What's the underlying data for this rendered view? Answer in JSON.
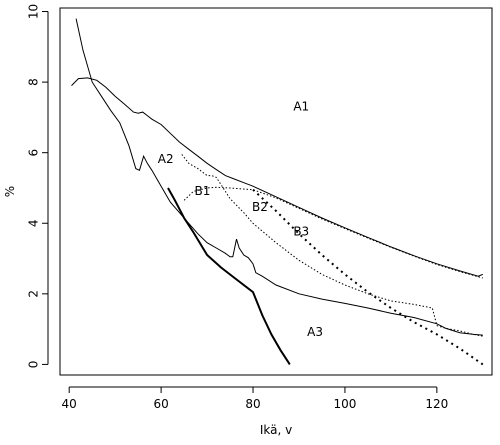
{
  "chart_data": {
    "type": "line",
    "title": "",
    "xlabel": "Ikä, v",
    "ylabel": "%",
    "xlim": [
      38,
      132
    ],
    "ylim": [
      -0.3,
      10.1
    ],
    "xticks": [
      40,
      60,
      80,
      100,
      120
    ],
    "yticks": [
      0,
      2,
      4,
      6,
      8,
      10
    ],
    "grid": false,
    "legend": "none",
    "series": [
      {
        "name": "A1",
        "style": "solid",
        "width": 1,
        "label_at": [
          90.5,
          7.3
        ],
        "points": [
          [
            40.5,
            7.9
          ],
          [
            42,
            8.1
          ],
          [
            44,
            8.12
          ],
          [
            46,
            8.05
          ],
          [
            48,
            7.85
          ],
          [
            50,
            7.6
          ],
          [
            52,
            7.38
          ],
          [
            54,
            7.15
          ],
          [
            55,
            7.12
          ],
          [
            56,
            7.15
          ],
          [
            57,
            7.05
          ],
          [
            58,
            6.95
          ],
          [
            60,
            6.8
          ],
          [
            62,
            6.55
          ],
          [
            64,
            6.3
          ],
          [
            66,
            6.1
          ],
          [
            68,
            5.9
          ],
          [
            70,
            5.7
          ],
          [
            72,
            5.52
          ],
          [
            74,
            5.35
          ],
          [
            76,
            5.25
          ],
          [
            78,
            5.15
          ],
          [
            80,
            5.05
          ],
          [
            85,
            4.75
          ],
          [
            90,
            4.45
          ],
          [
            95,
            4.15
          ],
          [
            100,
            3.87
          ],
          [
            105,
            3.6
          ],
          [
            110,
            3.33
          ],
          [
            115,
            3.08
          ],
          [
            120,
            2.85
          ],
          [
            125,
            2.65
          ],
          [
            129,
            2.5
          ],
          [
            130,
            2.55
          ]
        ]
      },
      {
        "name": "A2",
        "style": "solid",
        "width": 1,
        "label_at": [
          61,
          5.8
        ],
        "points": [
          [
            41.5,
            9.8
          ],
          [
            43,
            8.9
          ],
          [
            45,
            8.0
          ],
          [
            47,
            7.6
          ],
          [
            49,
            7.2
          ],
          [
            51,
            6.85
          ],
          [
            53,
            6.2
          ],
          [
            54.5,
            5.55
          ],
          [
            55.3,
            5.5
          ],
          [
            56.2,
            5.9
          ],
          [
            57,
            5.7
          ],
          [
            58,
            5.5
          ],
          [
            60,
            5.05
          ],
          [
            62,
            4.6
          ],
          [
            64,
            4.3
          ],
          [
            66,
            4.0
          ],
          [
            68,
            3.7
          ],
          [
            70,
            3.45
          ],
          [
            72,
            3.3
          ],
          [
            74,
            3.15
          ],
          [
            75,
            3.05
          ],
          [
            75.6,
            3.05
          ],
          [
            76.4,
            3.55
          ],
          [
            77,
            3.3
          ],
          [
            78,
            3.1
          ],
          [
            79,
            3.02
          ],
          [
            80,
            2.85
          ],
          [
            80.6,
            2.6
          ],
          [
            82,
            2.5
          ],
          [
            85,
            2.25
          ],
          [
            90,
            2.0
          ],
          [
            95,
            1.85
          ],
          [
            100,
            1.73
          ],
          [
            105,
            1.6
          ],
          [
            110,
            1.45
          ],
          [
            115,
            1.33
          ],
          [
            120,
            1.15
          ],
          [
            122,
            1.02
          ],
          [
            125,
            0.9
          ],
          [
            128,
            0.85
          ],
          [
            130,
            0.83
          ]
        ]
      },
      {
        "name": "A3",
        "style": "solid",
        "width": 2,
        "label_at": [
          93.5,
          0.9
        ],
        "points": [
          [
            61.5,
            5.0
          ],
          [
            63,
            4.65
          ],
          [
            65,
            4.15
          ],
          [
            67,
            3.75
          ],
          [
            70,
            3.1
          ],
          [
            73,
            2.75
          ],
          [
            76,
            2.45
          ],
          [
            80,
            2.05
          ],
          [
            82,
            1.4
          ],
          [
            84,
            0.85
          ],
          [
            86,
            0.4
          ],
          [
            88,
            0.0
          ]
        ]
      },
      {
        "name": "B1",
        "style": "dotted",
        "width": 1,
        "label_at": [
          69,
          4.9
        ],
        "points": [
          [
            65,
            4.65
          ],
          [
            67,
            4.9
          ],
          [
            70,
            5.0
          ],
          [
            72,
            5.02
          ],
          [
            75,
            5.0
          ],
          [
            80,
            4.95
          ],
          [
            85,
            4.72
          ],
          [
            90,
            4.42
          ],
          [
            95,
            4.12
          ],
          [
            100,
            3.85
          ],
          [
            105,
            3.58
          ],
          [
            110,
            3.32
          ],
          [
            115,
            3.07
          ],
          [
            120,
            2.83
          ],
          [
            125,
            2.63
          ],
          [
            130,
            2.45
          ]
        ]
      },
      {
        "name": "B2",
        "style": "dotted",
        "width": 1,
        "label_at": [
          81.5,
          4.45
        ],
        "points": [
          [
            64.5,
            5.95
          ],
          [
            66,
            5.7
          ],
          [
            68,
            5.55
          ],
          [
            70,
            5.35
          ],
          [
            71,
            5.35
          ],
          [
            72,
            5.3
          ],
          [
            73,
            5.1
          ],
          [
            75,
            4.7
          ],
          [
            78,
            4.3
          ],
          [
            80,
            4.0
          ],
          [
            85,
            3.45
          ],
          [
            90,
            2.95
          ],
          [
            95,
            2.55
          ],
          [
            100,
            2.25
          ],
          [
            105,
            2.0
          ],
          [
            110,
            1.8
          ],
          [
            115,
            1.7
          ],
          [
            119,
            1.6
          ],
          [
            120,
            1.1
          ],
          [
            122,
            1.02
          ],
          [
            125,
            0.95
          ],
          [
            128,
            0.85
          ],
          [
            130,
            0.8
          ]
        ]
      },
      {
        "name": "B3",
        "style": "dotted-bold",
        "width": 2,
        "label_at": [
          90.5,
          3.75
        ],
        "points": [
          [
            80,
            4.95
          ],
          [
            85,
            4.35
          ],
          [
            90,
            3.7
          ],
          [
            95,
            3.1
          ],
          [
            100,
            2.55
          ],
          [
            105,
            2.05
          ],
          [
            110,
            1.6
          ],
          [
            115,
            1.2
          ],
          [
            120,
            0.85
          ],
          [
            125,
            0.45
          ],
          [
            130,
            0.0
          ]
        ]
      }
    ]
  }
}
